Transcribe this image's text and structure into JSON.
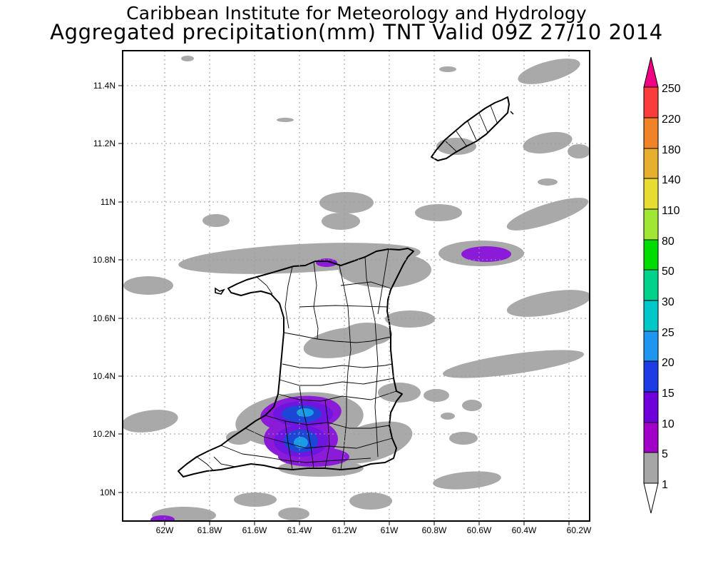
{
  "header": {
    "title_line1": "Caribbean Institute for Meteorology and Hydrology",
    "title_line2": "Aggregated precipitation(mm) TNT Valid 09Z 27/10 2014"
  },
  "map": {
    "lon_labels": [
      "62W",
      "61.8W",
      "61.6W",
      "61.4W",
      "61.2W",
      "61W",
      "60.8W",
      "60.6W",
      "60.4W",
      "60.2W"
    ],
    "lat_labels": [
      "11.4N",
      "11.2N",
      "11N",
      "10.8N",
      "10.6N",
      "10.4N",
      "10.2N",
      "10N"
    ],
    "colors": {
      "land_outline": "#000000",
      "light_rain": "#a9a9a9",
      "moderate_rain": "#8c1ad9",
      "heavy_rain": "#1c47d6",
      "very_heavy_rain": "#1a9be8"
    }
  },
  "colorbar": {
    "labels": [
      "1",
      "5",
      "10",
      "15",
      "20",
      "25",
      "30",
      "50",
      "80",
      "110",
      "140",
      "180",
      "220",
      "250"
    ],
    "colors": [
      "#ffffff",
      "#a6a6a6",
      "#a000c8",
      "#6e00dc",
      "#1e3ce6",
      "#1e96f0",
      "#00c8c8",
      "#00d28c",
      "#00dc00",
      "#a0e632",
      "#e6dc32",
      "#e6af2d",
      "#f08228",
      "#fa3c3c",
      "#f00082"
    ]
  }
}
